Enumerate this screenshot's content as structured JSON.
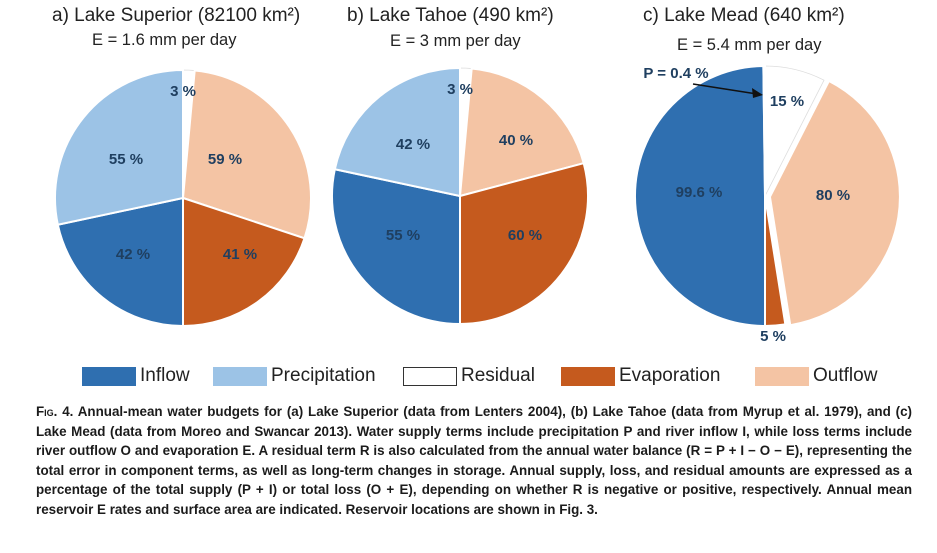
{
  "colors": {
    "inflow": "#2f6fb0",
    "precipitation": "#9cc3e6",
    "residual": "#ffffff",
    "evaporation": "#c55a1e",
    "outflow": "#f4c4a4"
  },
  "chart_data": [
    {
      "type": "pie",
      "title": "a)  Lake Superior (82100 km²)",
      "subtitle": "E = 1.6 mm per day",
      "slices": [
        {
          "name": "Residual",
          "value": 3,
          "label": "3 %"
        },
        {
          "name": "Outflow",
          "value": 59,
          "label": "59 %"
        },
        {
          "name": "Evaporation",
          "value": 41,
          "label": "41 %"
        },
        {
          "name": "Inflow",
          "value": 42,
          "label": "42 %"
        },
        {
          "name": "Precipitation",
          "value": 55,
          "label": "55 %"
        }
      ]
    },
    {
      "type": "pie",
      "title": "b) Lake Tahoe (490 km²)",
      "subtitle": "E = 3 mm per day",
      "slices": [
        {
          "name": "Residual",
          "value": 3,
          "label": "3 %"
        },
        {
          "name": "Outflow",
          "value": 40,
          "label": "40 %"
        },
        {
          "name": "Evaporation",
          "value": 60,
          "label": "60 %"
        },
        {
          "name": "Inflow",
          "value": 55,
          "label": "55 %"
        },
        {
          "name": "Precipitation",
          "value": 42,
          "label": "42 %"
        }
      ]
    },
    {
      "type": "pie",
      "title": "c) Lake Mead (640 km²)",
      "subtitle": "E = 5.4 mm per day",
      "slices": [
        {
          "name": "Residual",
          "value": 15,
          "label": "15 %"
        },
        {
          "name": "Outflow",
          "value": 80,
          "label": "80 %"
        },
        {
          "name": "Evaporation",
          "value": 5,
          "label": "5 %"
        },
        {
          "name": "Inflow",
          "value": 99.6,
          "label": "99.6 %"
        },
        {
          "name": "Precipitation",
          "value": 0.4,
          "label": "P = 0.4 %"
        }
      ]
    }
  ],
  "legend": [
    {
      "name": "Inflow",
      "label": "Inflow"
    },
    {
      "name": "Precipitation",
      "label": "Precipitation"
    },
    {
      "name": "Residual",
      "label": "Residual"
    },
    {
      "name": "Evaporation",
      "label": "Evaporation"
    },
    {
      "name": "Outflow",
      "label": "Outflow"
    }
  ],
  "caption": {
    "fig": "Fig. 4.",
    "text": "Annual-mean water budgets for (a) Lake Superior (data from Lenters 2004), (b) Lake Tahoe (data from Myrup et al. 1979), and (c) Lake Mead (data from Moreo and Swancar 2013). Water supply terms include precipitation P and river inflow I, while loss terms include river outflow O and evaporation E. A residual term R is also calculated from the annual water balance (R = P + I − O − E), representing the total error in component terms, as well as long-term changes in storage. Annual supply, loss, and residual amounts are expressed as a percentage of the total supply (P + I) or total loss (O + E), depending on whether R is negative or positive, respectively. Annual mean reservoir E rates and surface area are indicated. Reservoir locations are shown in Fig. 3."
  }
}
